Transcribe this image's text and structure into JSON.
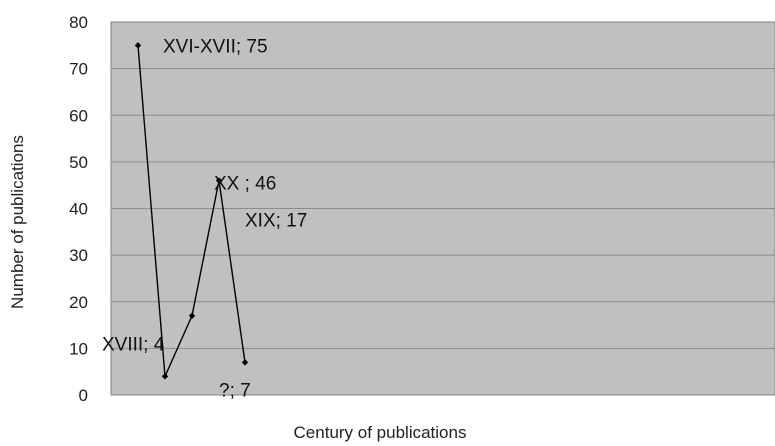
{
  "chart_data": {
    "type": "line",
    "title": "",
    "xlabel": "Century of publications",
    "ylabel": "Number of publications",
    "ylim": [
      0,
      80
    ],
    "yticks": [
      "0",
      "10",
      "20",
      "30",
      "40",
      "50",
      "60",
      "70",
      "80"
    ],
    "grid": true,
    "legend": "none",
    "series": [
      {
        "values": [
          75,
          4,
          17,
          46,
          7
        ]
      }
    ],
    "data_labels": [
      {
        "text": "XVI-XVII; 75",
        "value": 75
      },
      {
        "text": "XVIII; 4",
        "value": 4
      },
      {
        "text": "XIX; 17",
        "value": 17
      },
      {
        "text": "XX ; 46",
        "value": 46
      },
      {
        "text": "?; 7",
        "value": 7
      }
    ],
    "colors": {
      "plot_background": "#c0c0c0",
      "gridline": "#8c8c8c",
      "line": "#000000",
      "marker": "#000000"
    }
  }
}
